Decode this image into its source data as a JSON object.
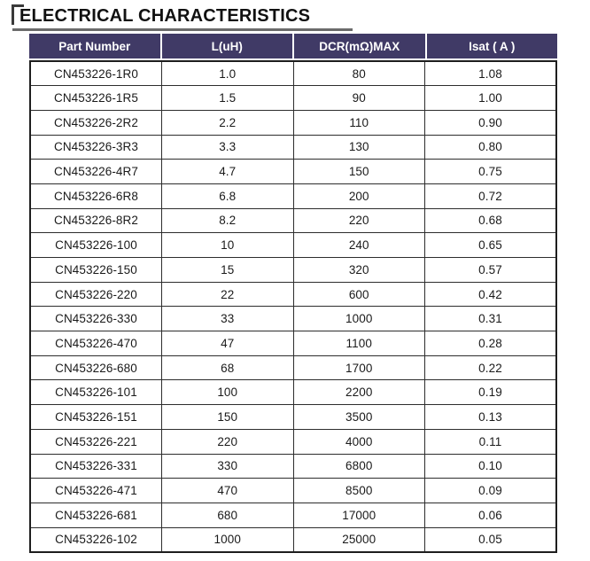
{
  "page_title": {
    "text": "ELECTRICAL CHARACTERISTICS"
  },
  "colors": {
    "header_bg": "#403A66",
    "header_text": "#FFFFFF",
    "grid_border": "#2D2D2D",
    "outer_border": "#1E1E1E",
    "title_underline": "#6B6B6B",
    "bracket": "#3A3A3A"
  },
  "table": {
    "columns": [
      "Part Number",
      "L(uH)",
      "DCR(mΩ)MAX",
      "Isat ( A )"
    ],
    "rows": [
      [
        "CN453226-1R0",
        "1.0",
        "80",
        "1.08"
      ],
      [
        "CN453226-1R5",
        "1.5",
        "90",
        "1.00"
      ],
      [
        "CN453226-2R2",
        "2.2",
        "110",
        "0.90"
      ],
      [
        "CN453226-3R3",
        "3.3",
        "130",
        "0.80"
      ],
      [
        "CN453226-4R7",
        "4.7",
        "150",
        "0.75"
      ],
      [
        "CN453226-6R8",
        "6.8",
        "200",
        "0.72"
      ],
      [
        "CN453226-8R2",
        "8.2",
        "220",
        "0.68"
      ],
      [
        "CN453226-100",
        "10",
        "240",
        "0.65"
      ],
      [
        "CN453226-150",
        "15",
        "320",
        "0.57"
      ],
      [
        "CN453226-220",
        "22",
        "600",
        "0.42"
      ],
      [
        "CN453226-330",
        "33",
        "1000",
        "0.31"
      ],
      [
        "CN453226-470",
        "47",
        "1100",
        "0.28"
      ],
      [
        "CN453226-680",
        "68",
        "1700",
        "0.22"
      ],
      [
        "CN453226-101",
        "100",
        "2200",
        "0.19"
      ],
      [
        "CN453226-151",
        "150",
        "3500",
        "0.13"
      ],
      [
        "CN453226-221",
        "220",
        "4000",
        "0.11"
      ],
      [
        "CN453226-331",
        "330",
        "6800",
        "0.10"
      ],
      [
        "CN453226-471",
        "470",
        "8500",
        "0.09"
      ],
      [
        "CN453226-681",
        "680",
        "17000",
        "0.06"
      ],
      [
        "CN453226-102",
        "1000",
        "25000",
        "0.05"
      ]
    ]
  }
}
